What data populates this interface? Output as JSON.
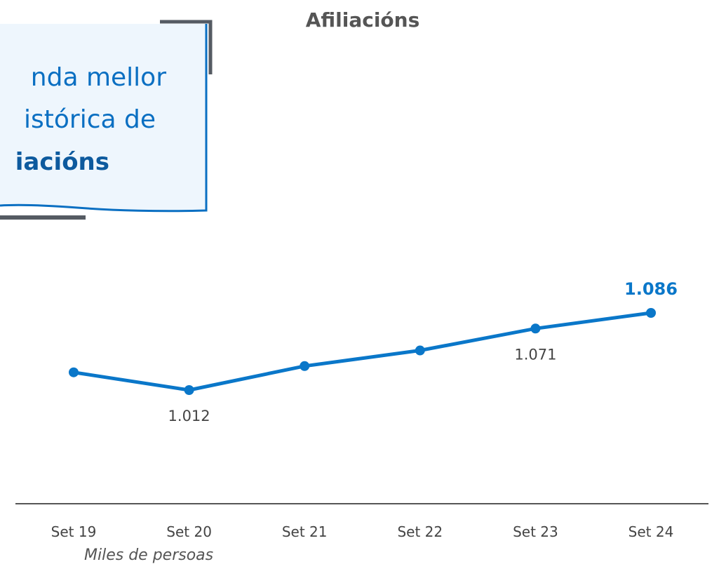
{
  "chart_data": {
    "type": "line",
    "title": "Afiliacións",
    "callout": [
      "nda mellor",
      "istórica de",
      "iacións"
    ],
    "categories": [
      "Set 19",
      "Set 20",
      "Set 21",
      "Set 22",
      "Set 23",
      "Set 24"
    ],
    "series": [
      {
        "name": "Afiliacións",
        "color": "#0a77c9",
        "values": [
          1029,
          1012,
          1035,
          1050,
          1071,
          1086
        ],
        "value_labels": [
          null,
          "1.012",
          null,
          null,
          "1.071",
          "1.086"
        ]
      }
    ],
    "footnote": "Miles de persoas"
  }
}
